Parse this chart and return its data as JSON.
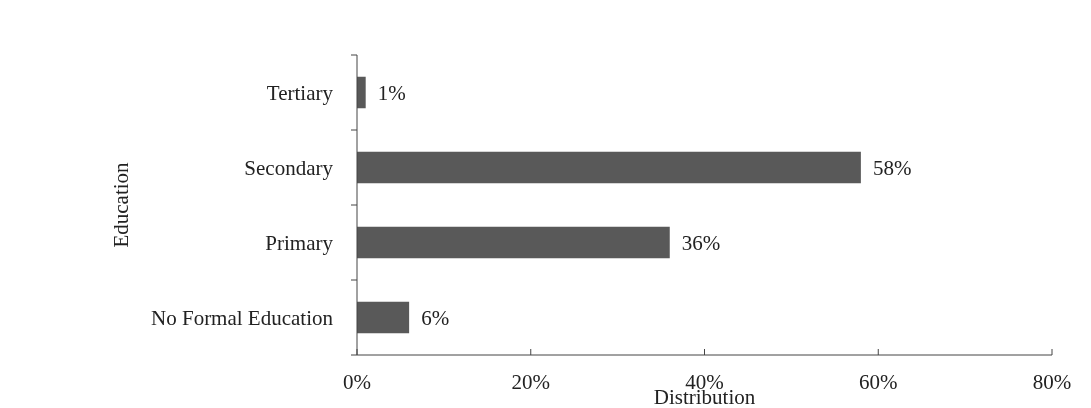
{
  "chart_data": {
    "type": "bar",
    "orientation": "horizontal",
    "xlabel": "Distribution",
    "ylabel": "Education",
    "categories": [
      "Tertiary",
      "Secondary",
      "Primary",
      "No Formal Education"
    ],
    "values": [
      1,
      58,
      36,
      6
    ],
    "color": "#595959",
    "value_labels": [
      "1%",
      "58%",
      "36%",
      "6%"
    ],
    "xlim": [
      0,
      80
    ],
    "xticks": [
      {
        "value": 0,
        "label": "0%"
      },
      {
        "value": 20,
        "label": "20%"
      },
      {
        "value": 40,
        "label": "40%"
      },
      {
        "value": 60,
        "label": "60%"
      },
      {
        "value": 80,
        "label": "80%"
      }
    ],
    "grid": false
  }
}
